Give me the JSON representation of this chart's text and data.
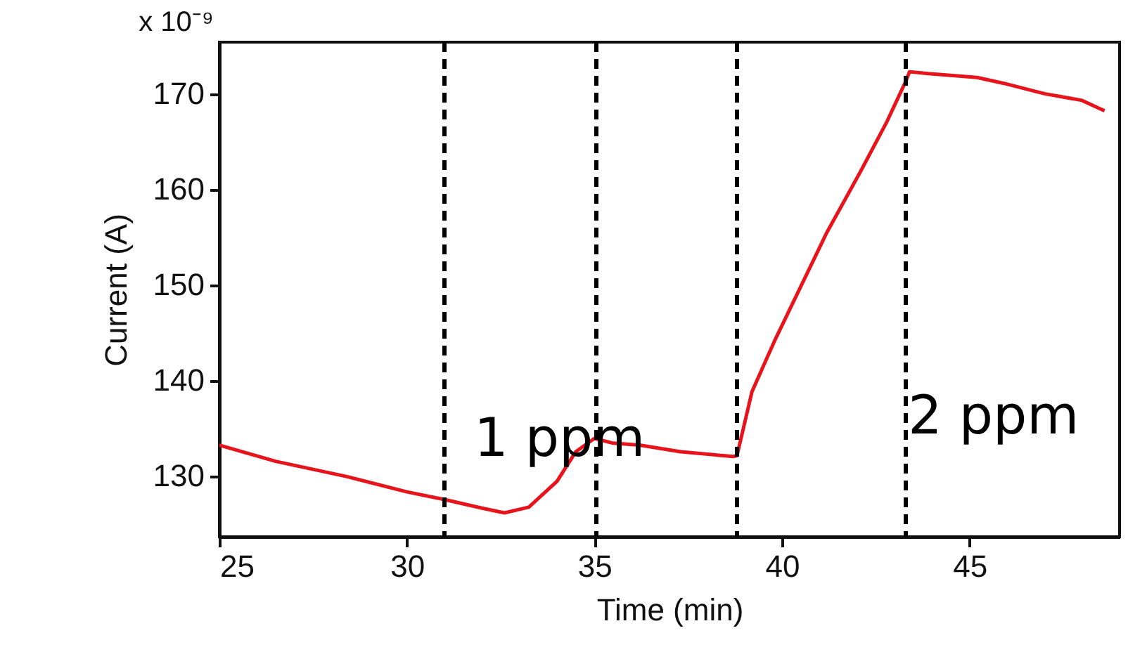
{
  "chart_data": {
    "type": "line",
    "xlabel": "Time (min)",
    "ylabel": "Current (A)",
    "xlim": [
      25,
      49
    ],
    "xticks": [
      25,
      30,
      35,
      40,
      45
    ],
    "ylim": [
      123.6,
      175.4
    ],
    "yticks": [
      130,
      140,
      150,
      160,
      170
    ],
    "grid": false,
    "marker": "none",
    "line_style": "solid",
    "series": [
      {
        "color": "#e8141b",
        "x": [
          25,
          26.5,
          28.4,
          30,
          31,
          32,
          32.6,
          33.25,
          34,
          34.5,
          35,
          35.5,
          36.2,
          37.3,
          38.7,
          38.8,
          39.2,
          39.8,
          41.2,
          42.1,
          42.8,
          43.3,
          43.4,
          43.9,
          45.2,
          45.9,
          47,
          48,
          48.6
        ],
        "values": [
          133.2,
          131.5,
          129.9,
          128.3,
          127.5,
          126.6,
          126.1,
          126.7,
          129.4,
          132.5,
          133.9,
          133.4,
          133.2,
          132.5,
          132,
          132.1,
          138.8,
          144.1,
          155.5,
          161.9,
          167.1,
          171.3,
          172.3,
          172.1,
          171.7,
          171.1,
          170,
          169.3,
          168.2
        ]
      }
    ],
    "ref_lines": [
      {
        "axis": "x",
        "value": 31,
        "color": "#000000",
        "line_style": "dashed"
      },
      {
        "axis": "x",
        "value": 35.05,
        "color": "#000000",
        "line_style": "dashed"
      },
      {
        "axis": "x",
        "value": 38.8,
        "color": "#000000",
        "line_style": "dashed"
      },
      {
        "axis": "x",
        "value": 43.3,
        "color": "#000000",
        "line_style": "dashed"
      }
    ],
    "annotations": [
      "x 10⁻⁹",
      "1 ppm",
      "2 ppm"
    ]
  }
}
